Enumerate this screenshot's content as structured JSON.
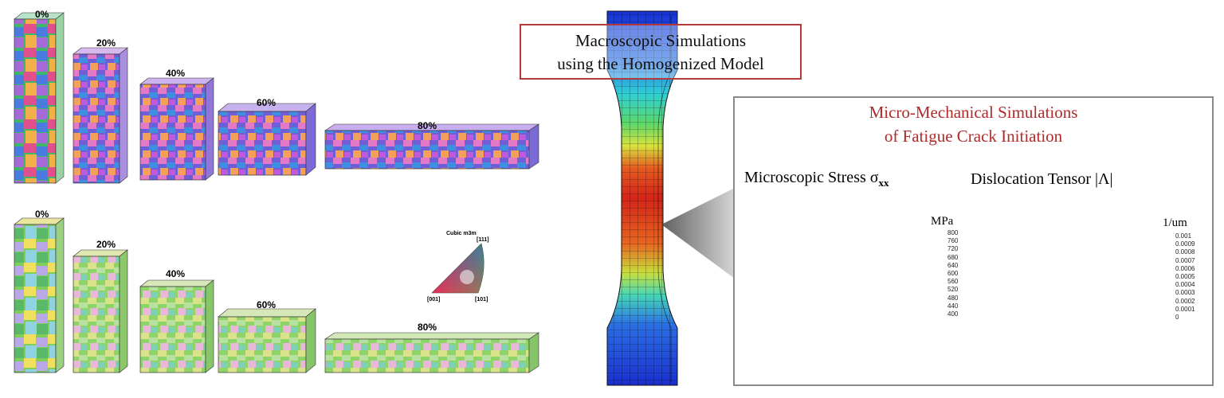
{
  "left_panel": {
    "top_row_labels": [
      "0%",
      "20%",
      "40%",
      "60%",
      "80%"
    ],
    "bottom_row_labels": [
      "0%",
      "20%",
      "40%",
      "60%",
      "80%"
    ]
  },
  "ipf_legend": {
    "title": "Cubic m3m",
    "corner_111": "[111]",
    "corner_001": "[001]",
    "corner_101": "[101]"
  },
  "macro": {
    "line1": "Macroscopic Simulations",
    "line2": "using the Homogenized Model",
    "border_color": "#b23a3a"
  },
  "micro": {
    "title_line1": "Micro-Mechanical Simulations",
    "title_line2": "of Fatigue Crack Initiation",
    "title_color": "#b02a2a",
    "stress": {
      "title": "Microscopic Stress σxx",
      "title_main": "Microscopic Stress σ",
      "title_sub": "xx",
      "unit": "MPa",
      "ticks": [
        "800",
        "760",
        "720",
        "680",
        "640",
        "600",
        "560",
        "520",
        "480",
        "440",
        "400"
      ]
    },
    "dislocation": {
      "title": "Dislocation Tensor |Λ|",
      "unit": "1/um",
      "ticks": [
        "0.001",
        "0.0009",
        "0.0008",
        "0.0007",
        "0.0006",
        "0.0005",
        "0.0004",
        "0.0003",
        "0.0002",
        "0.0001",
        "0"
      ]
    }
  }
}
